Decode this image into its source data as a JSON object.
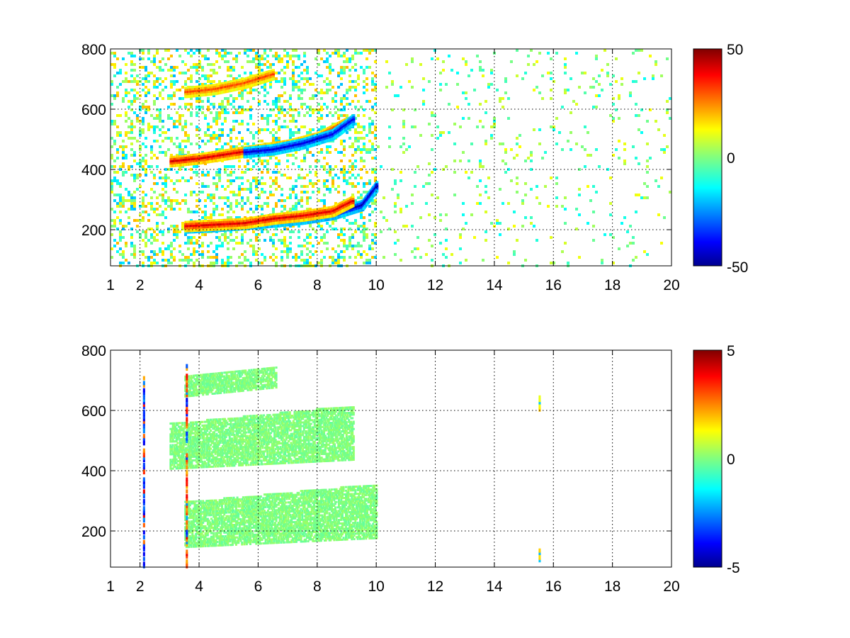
{
  "chart_data": [
    {
      "type": "heatmap",
      "colormap": "jet",
      "xlim": [
        1,
        20
      ],
      "ylim": [
        80,
        800
      ],
      "x_ticks": [
        1,
        2,
        4,
        6,
        8,
        10,
        12,
        14,
        16,
        18,
        20
      ],
      "x_tick_labels": [
        "1",
        "2",
        "4",
        "6",
        "8",
        "10",
        "12",
        "14",
        "16",
        "18",
        "20"
      ],
      "y_ticks": [
        200,
        400,
        600,
        800
      ],
      "y_tick_labels": [
        "200",
        "400",
        "600",
        "800"
      ],
      "grid": true,
      "colorbar": {
        "min": -50,
        "max": 50,
        "labels": [
          "50",
          "0",
          "-50"
        ],
        "placement": "right"
      },
      "ridges": [
        {
          "x": [
            3.5,
            4.5,
            5.5,
            6.5,
            7.5,
            8.5,
            9.5,
            10.0
          ],
          "y": [
            210,
            215,
            222,
            230,
            240,
            255,
            285,
            350
          ],
          "value": -45
        },
        {
          "x": [
            3.5,
            4.5,
            5.5,
            6.5,
            7.5,
            8.5,
            9.2
          ],
          "y": [
            215,
            220,
            225,
            240,
            250,
            265,
            300
          ],
          "value": 40
        },
        {
          "x": [
            3.0,
            4.0,
            5.0,
            6.0,
            7.0,
            8.0,
            9.0
          ],
          "y": [
            430,
            440,
            455,
            470,
            485,
            510,
            560
          ],
          "value": 40
        },
        {
          "x": [
            5.5,
            6.5,
            7.5,
            8.5,
            9.2
          ],
          "y": [
            460,
            470,
            490,
            520,
            570
          ],
          "value": -40
        },
        {
          "x": [
            3.5,
            4.5,
            5.5,
            6.5
          ],
          "y": [
            660,
            670,
            690,
            720
          ],
          "value": 30
        }
      ]
    },
    {
      "type": "heatmap",
      "colormap": "jet",
      "xlim": [
        1,
        20
      ],
      "ylim": [
        80,
        800
      ],
      "x_ticks": [
        1,
        2,
        4,
        6,
        8,
        10,
        12,
        14,
        16,
        18,
        20
      ],
      "x_tick_labels": [
        "1",
        "2",
        "4",
        "6",
        "8",
        "10",
        "12",
        "14",
        "16",
        "18",
        "20"
      ],
      "y_ticks": [
        200,
        400,
        600,
        800
      ],
      "y_tick_labels": [
        "200",
        "400",
        "600",
        "800"
      ],
      "grid": true,
      "colorbar": {
        "min": -5,
        "max": 5,
        "labels": [
          "5",
          "0",
          "-5"
        ],
        "placement": "right"
      },
      "regions": [
        {
          "x": [
            3.5,
            10.0
          ],
          "y_low": [
            150,
            180
          ],
          "y_high": [
            300,
            360
          ],
          "value": 0
        },
        {
          "x": [
            3.0,
            9.2
          ],
          "y_low": [
            410,
            440
          ],
          "y_high": [
            560,
            620
          ],
          "value": 0
        },
        {
          "x": [
            3.5,
            6.6
          ],
          "y_low": [
            650,
            680
          ],
          "y_high": [
            720,
            750
          ],
          "value": 0
        }
      ],
      "spikes": [
        {
          "x": 3.55,
          "y": [
            90,
            760
          ],
          "value": 4
        },
        {
          "x": 2.1,
          "y": [
            90,
            720
          ],
          "value": -4
        },
        {
          "x": 15.5,
          "y": [
            610,
            650
          ],
          "value": 2
        },
        {
          "x": 15.5,
          "y": [
            110,
            150
          ],
          "value": 2
        }
      ]
    }
  ]
}
